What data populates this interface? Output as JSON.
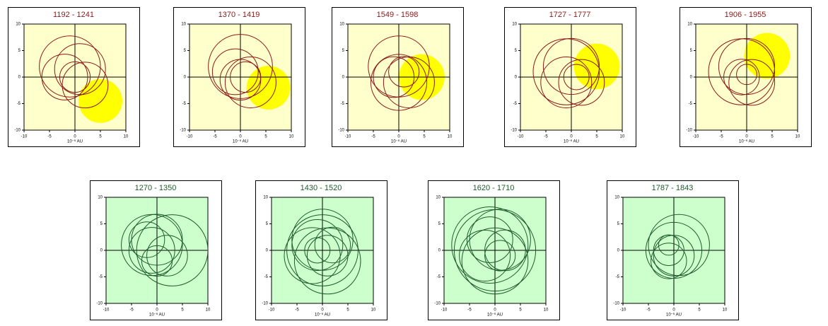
{
  "chart_data": [
    {
      "type": "loops",
      "title": "1192 - 1241",
      "background": "#ffffcc",
      "color": "#8b1a1a",
      "highlight": "#ffff00"
    },
    {
      "type": "loops",
      "title": "1370 - 1419",
      "background": "#ffffcc",
      "color": "#8b1a1a",
      "highlight": "#ffff00"
    },
    {
      "type": "loops",
      "title": "1549 - 1598",
      "background": "#ffffcc",
      "color": "#8b1a1a",
      "highlight": "#ffff00"
    },
    {
      "type": "loops",
      "title": "1727 - 1777",
      "background": "#ffffcc",
      "color": "#8b1a1a",
      "highlight": "#ffff00"
    },
    {
      "type": "loops",
      "title": "1906 - 1955",
      "background": "#ffffcc",
      "color": "#8b1a1a",
      "highlight": "#ffff00"
    },
    {
      "type": "loops",
      "title": "1270 - 1350",
      "background": "#ccffcc",
      "color": "#1f5a2e"
    },
    {
      "type": "loops",
      "title": "1430 - 1520",
      "background": "#ccffcc",
      "color": "#1f5a2e"
    },
    {
      "type": "loops",
      "title": "1620 - 1710",
      "background": "#ccffcc",
      "color": "#1f5a2e"
    },
    {
      "type": "loops",
      "title": "1787 - 1843",
      "background": "#ccffcc",
      "color": "#1f5a2e"
    }
  ],
  "axes": {
    "xlabel": "10⁻⁶ AU",
    "xlim": [
      -10,
      10
    ],
    "ylim": [
      -10,
      10
    ],
    "xticks": [
      -10,
      -5,
      0,
      5,
      10
    ],
    "yticks": [
      -10,
      -5,
      0,
      5,
      10
    ]
  }
}
